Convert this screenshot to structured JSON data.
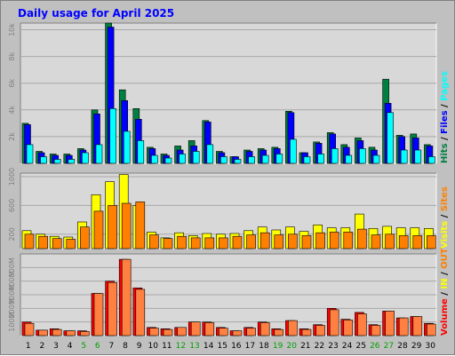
{
  "chart_data": {
    "type": "bar",
    "title": "Daily usage for April 2025",
    "categories": [
      "1",
      "2",
      "3",
      "4",
      "5",
      "6",
      "7",
      "8",
      "9",
      "10",
      "11",
      "12",
      "13",
      "14",
      "15",
      "16",
      "17",
      "18",
      "19",
      "20",
      "21",
      "22",
      "23",
      "24",
      "25",
      "26",
      "27",
      "28",
      "29",
      "30"
    ],
    "weekend_days": [
      "5",
      "6",
      "12",
      "13",
      "19",
      "20",
      "26",
      "27"
    ],
    "colors": {
      "background": "#c0c0c0",
      "plot_background": "#d8d8d8",
      "hits": "#008040",
      "files": "#0000ff",
      "pages": "#00ffff",
      "visits": "#ffff00",
      "sites": "#ff8000",
      "kbytes_in": "#ff0000",
      "kbytes_out": "#ff8040",
      "weekday_label": "#000000",
      "weekend_label": "#00a000"
    },
    "panels": [
      {
        "id": "hits-files-pages",
        "ylim": [
          0,
          10500
        ],
        "yticks": [
          {
            "value": 2000,
            "label": "2k"
          },
          {
            "value": 4000,
            "label": "4k"
          },
          {
            "value": 6000,
            "label": "6k"
          },
          {
            "value": 8000,
            "label": "8k"
          },
          {
            "value": 10000,
            "label": "10k"
          }
        ],
        "side_label": [
          {
            "text": "Hits",
            "color_key": "hits"
          },
          {
            "text": " / ",
            "color_key": "separator"
          },
          {
            "text": "Files",
            "color_key": "files"
          },
          {
            "text": " / ",
            "color_key": "separator"
          },
          {
            "text": "Pages",
            "color_key": "pages"
          }
        ],
        "series": [
          {
            "name": "Hits",
            "color_key": "hits",
            "values": [
              3000,
              900,
              700,
              700,
              1100,
              4000,
              10500,
              5500,
              4100,
              1200,
              700,
              1300,
              1700,
              3200,
              900,
              500,
              1000,
              1100,
              1200,
              3900,
              800,
              1600,
              2300,
              1400,
              1900,
              1200,
              6300,
              2100,
              2200,
              1400
            ]
          },
          {
            "name": "Files",
            "color_key": "files",
            "values": [
              2900,
              800,
              600,
              600,
              1000,
              3700,
              10200,
              4700,
              3300,
              1100,
              600,
              1000,
              1300,
              3100,
              800,
              500,
              900,
              1000,
              1100,
              3800,
              800,
              1500,
              2200,
              1200,
              1700,
              1000,
              4500,
              2000,
              1900,
              1300
            ]
          },
          {
            "name": "Pages",
            "color_key": "pages",
            "values": [
              1400,
              500,
              300,
              300,
              800,
              1400,
              4100,
              2400,
              1700,
              600,
              400,
              700,
              900,
              1400,
              500,
              300,
              500,
              600,
              700,
              1800,
              500,
              700,
              1100,
              600,
              1100,
              600,
              3800,
              1000,
              1000,
              500
            ]
          }
        ]
      },
      {
        "id": "visits-sites",
        "ylim": [
          0,
          1050
        ],
        "yticks": [
          {
            "value": 200,
            "label": "200"
          },
          {
            "value": 600,
            "label": "600"
          },
          {
            "value": 1000,
            "label": "1000"
          }
        ],
        "side_label": [
          {
            "text": "Visits",
            "color_key": "visits"
          },
          {
            "text": " / ",
            "color_key": "separator"
          },
          {
            "text": "Sites",
            "color_key": "sites"
          }
        ],
        "series": [
          {
            "name": "Visits",
            "color_key": "visits",
            "values": [
              250,
              200,
              170,
              160,
              370,
              750,
              930,
              1030,
              600,
              230,
              150,
              220,
              180,
              210,
              200,
              210,
              250,
              300,
              260,
              300,
              240,
              330,
              290,
              290,
              480,
              280,
              310,
              290,
              290,
              280
            ]
          },
          {
            "name": "Sites",
            "color_key": "sites",
            "values": [
              200,
              170,
              140,
              130,
              300,
              520,
              600,
              630,
              650,
              190,
              140,
              170,
              150,
              150,
              150,
              170,
              190,
              220,
              190,
              200,
              180,
              220,
              230,
              230,
              270,
              190,
              200,
              180,
              180,
              180
            ]
          }
        ]
      },
      {
        "id": "kbytes",
        "ylim": [
          0,
          600
        ],
        "yticks": [
          {
            "value": 100,
            "label": "100M"
          },
          {
            "value": 200,
            "label": "200M"
          },
          {
            "value": 300,
            "label": "300M"
          },
          {
            "value": 400,
            "label": "400M"
          },
          {
            "value": 500,
            "label": "500M"
          }
        ],
        "side_label": [
          {
            "text": "Volume",
            "color_key": "kbytes_in"
          },
          {
            "text": " / ",
            "color_key": "separator"
          },
          {
            "text": "IN",
            "color_key": "visits"
          },
          {
            "text": " / ",
            "color_key": "separator"
          },
          {
            "text": "OUT",
            "color_key": "sites"
          }
        ],
        "series": [
          {
            "name": "IN",
            "color_key": "kbytes_in",
            "values": [
              100,
              40,
              50,
              35,
              35,
              310,
              400,
              560,
              350,
              60,
              50,
              60,
              100,
              100,
              60,
              35,
              60,
              100,
              50,
              110,
              50,
              80,
              200,
              120,
              170,
              80,
              180,
              130,
              140,
              90
            ]
          },
          {
            "name": "OUT",
            "color_key": "kbytes_out",
            "values": [
              90,
              40,
              45,
              35,
              30,
              310,
              390,
              560,
              340,
              55,
              45,
              60,
              100,
              95,
              55,
              35,
              55,
              95,
              45,
              110,
              45,
              75,
              190,
              115,
              160,
              75,
              180,
              130,
              140,
              85
            ]
          }
        ]
      }
    ]
  }
}
